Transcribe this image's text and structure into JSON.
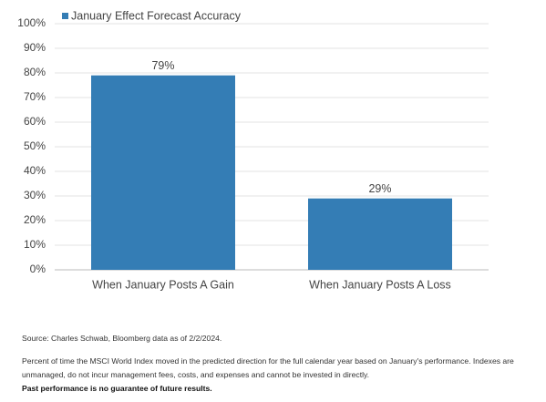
{
  "chart_data": {
    "type": "bar",
    "categories": [
      "When January Posts A Gain",
      "When January Posts A Loss"
    ],
    "series": [
      {
        "name": "January Effect Forecast Accuracy",
        "color": "#347db5",
        "values": [
          79,
          29
        ],
        "value_labels": [
          "79%",
          "29%"
        ]
      }
    ],
    "ylim": [
      0,
      100
    ],
    "yticks": [
      {
        "value": 0,
        "label": "0%"
      },
      {
        "value": 10,
        "label": "10%"
      },
      {
        "value": 20,
        "label": "20%"
      },
      {
        "value": 30,
        "label": "30%"
      },
      {
        "value": 40,
        "label": "40%"
      },
      {
        "value": 50,
        "label": "50%"
      },
      {
        "value": 60,
        "label": "60%"
      },
      {
        "value": 70,
        "label": "70%"
      },
      {
        "value": 80,
        "label": "80%"
      },
      {
        "value": 90,
        "label": "90%"
      },
      {
        "value": 100,
        "label": "100%"
      }
    ],
    "grid": true
  },
  "footnotes": {
    "source": "Source: Charles Schwab, Bloomberg data as of 2/2/2024.",
    "disclaimer": "Percent of time the MSCI World Index moved in the predicted direction for the full calendar year based on January's performance. Indexes are unmanaged, do not incur management fees, costs, and expenses and cannot be invested in directly.",
    "past_performance": "Past performance is no guarantee of future results."
  }
}
